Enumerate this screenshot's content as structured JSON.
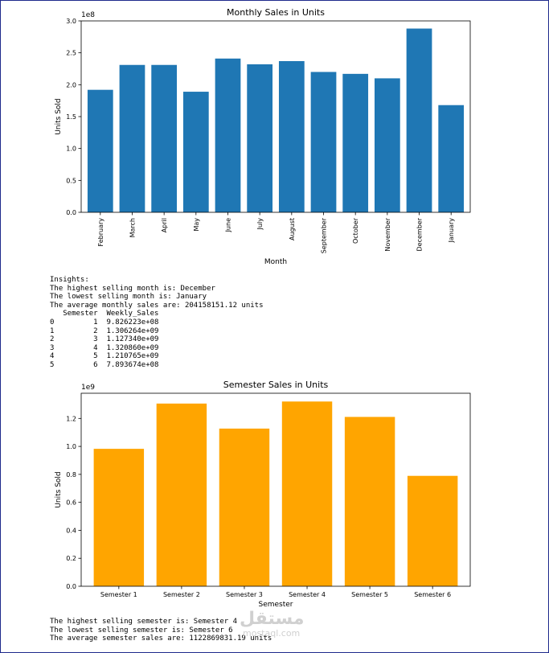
{
  "chart_data": [
    {
      "type": "bar",
      "title": "Monthly Sales in Units",
      "xlabel": "Month",
      "ylabel": "Units Sold",
      "offset_label": "1e8",
      "scale": 100000000,
      "color": "#1f77b4",
      "categories": [
        "February",
        "March",
        "April",
        "May",
        "June",
        "July",
        "August",
        "September",
        "October",
        "November",
        "December",
        "January"
      ],
      "values": [
        192000000,
        231000000,
        231000000,
        189000000,
        241000000,
        232000000,
        237000000,
        220000000,
        217000000,
        210000000,
        288000000,
        168000000
      ],
      "ylim": [
        0,
        3.0
      ],
      "yticks": [
        "0.0",
        "0.5",
        "1.0",
        "1.5",
        "2.0",
        "2.5",
        "3.0"
      ],
      "grid": false
    },
    {
      "type": "bar",
      "title": "Semester Sales in Units",
      "xlabel": "Semester",
      "ylabel": "Units Sold",
      "offset_label": "1e9",
      "scale": 1000000000,
      "color": "#ffa500",
      "categories": [
        "Semester 1",
        "Semester 2",
        "Semester 3",
        "Semester 4",
        "Semester 5",
        "Semester 6"
      ],
      "values": [
        982622300,
        1306264000,
        1127340000,
        1320860000,
        1210765000,
        789367400
      ],
      "ylim": [
        0,
        1.38
      ],
      "yticks": [
        "0.0",
        "0.2",
        "0.4",
        "0.6",
        "0.8",
        "1.0",
        "1.2"
      ],
      "grid": false
    }
  ],
  "output1": {
    "lines": [
      "Insights:",
      "The highest selling month is: December",
      "The lowest selling month is: January",
      "The average monthly sales are: 204158151.12 units",
      "   Semester  Weekly_Sales",
      "0         1  9.826223e+08",
      "1         2  1.306264e+09",
      "2         3  1.127340e+09",
      "3         4  1.320860e+09",
      "4         5  1.210765e+09",
      "5         6  7.893674e+08"
    ]
  },
  "output2": {
    "lines": [
      "The highest selling semester is: Semester 4",
      "The lowest selling semester is: Semester 6",
      "The average semester sales are: 1122869831.19 units"
    ]
  },
  "watermark": {
    "arabic": "مستقل",
    "latin": "mostaql.com"
  }
}
